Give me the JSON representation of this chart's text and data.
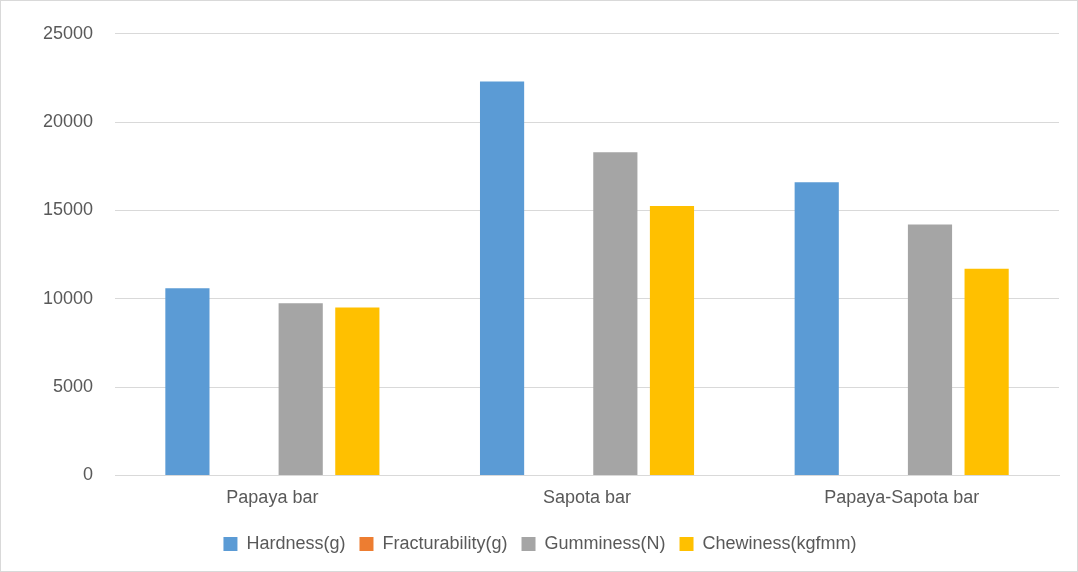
{
  "chart_data": {
    "type": "bar",
    "categories": [
      "Papaya bar",
      "Sapota bar",
      "Papaya-Sapota bar"
    ],
    "series": [
      {
        "name": "Hardness(g)",
        "color": "#5b9bd5",
        "values": [
          10600,
          22300,
          16600
        ]
      },
      {
        "name": "Fracturability(g)",
        "color": "#ed7d31",
        "values": [
          0,
          0,
          0
        ]
      },
      {
        "name": "Gumminess(N)",
        "color": "#a5a5a5",
        "values": [
          9750,
          18300,
          14200
        ]
      },
      {
        "name": "Chewiness(kgfmm)",
        "color": "#ffc000",
        "values": [
          9500,
          15250,
          11700
        ]
      }
    ],
    "ylim": [
      0,
      25000
    ],
    "yticks": [
      0,
      5000,
      10000,
      15000,
      20000,
      25000
    ],
    "grid": "y",
    "legend": "bottom"
  }
}
